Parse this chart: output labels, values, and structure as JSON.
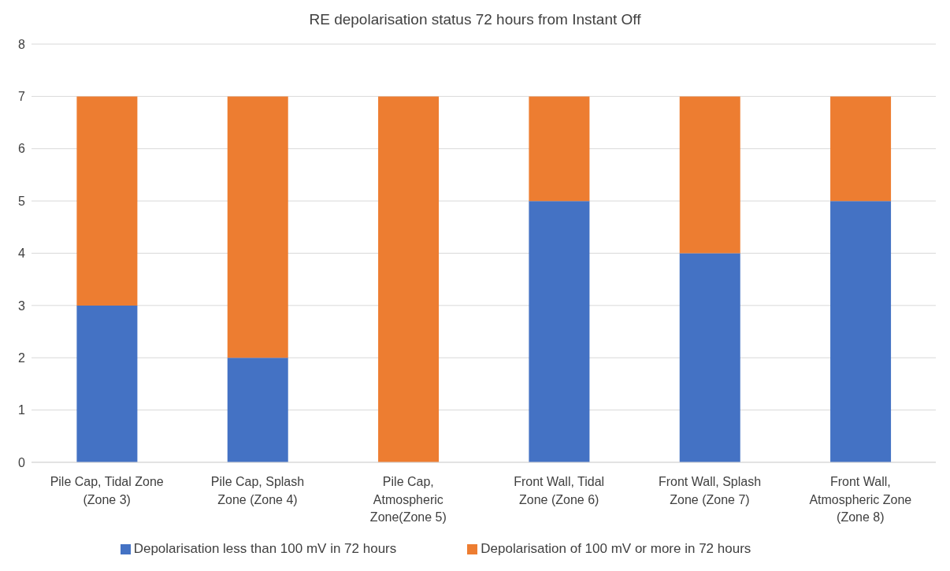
{
  "chart_data": {
    "type": "bar",
    "title": "RE depolarisation status 72 hours from Instant Off",
    "categories": [
      "Pile Cap, Tidal Zone (Zone 3)",
      "Pile Cap, Splash Zone (Zone 4)",
      "Pile Cap, Atmospheric Zone(Zone 5)",
      "Front Wall, Tidal Zone (Zone 6)",
      "Front Wall, Splash Zone (Zone 7)",
      "Front Wall, Atmospheric Zone (Zone 8)"
    ],
    "series": [
      {
        "name": "Depolarisation less than 100 mV in 72 hours",
        "color": "#4472c4",
        "values": [
          3,
          2,
          0,
          5,
          4,
          5
        ]
      },
      {
        "name": "Depolarisation of 100 mV or more in 72 hours",
        "color": "#ed7d31",
        "values": [
          4,
          5,
          7,
          2,
          3,
          2
        ]
      }
    ],
    "stacked": true,
    "ylim": [
      0,
      8
    ],
    "yticks": [
      0,
      1,
      2,
      3,
      4,
      5,
      6,
      7,
      8
    ],
    "grid": "y",
    "legend": "bottom"
  }
}
